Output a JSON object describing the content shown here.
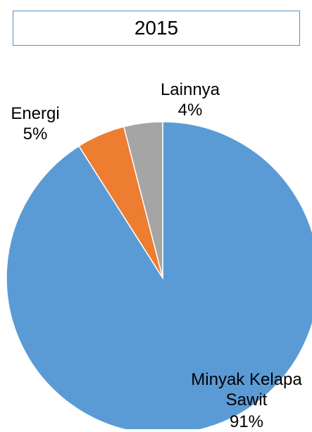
{
  "chart_data": {
    "type": "pie",
    "title": "2015",
    "categories": [
      "Minyak Kelapa Sawit",
      "Energi",
      "Lainnya"
    ],
    "values": [
      91,
      5,
      4
    ],
    "value_labels": [
      "91%",
      "5%",
      "4%"
    ],
    "colors": [
      "#5b9bd5",
      "#ed7d31",
      "#a5a5a5"
    ]
  }
}
